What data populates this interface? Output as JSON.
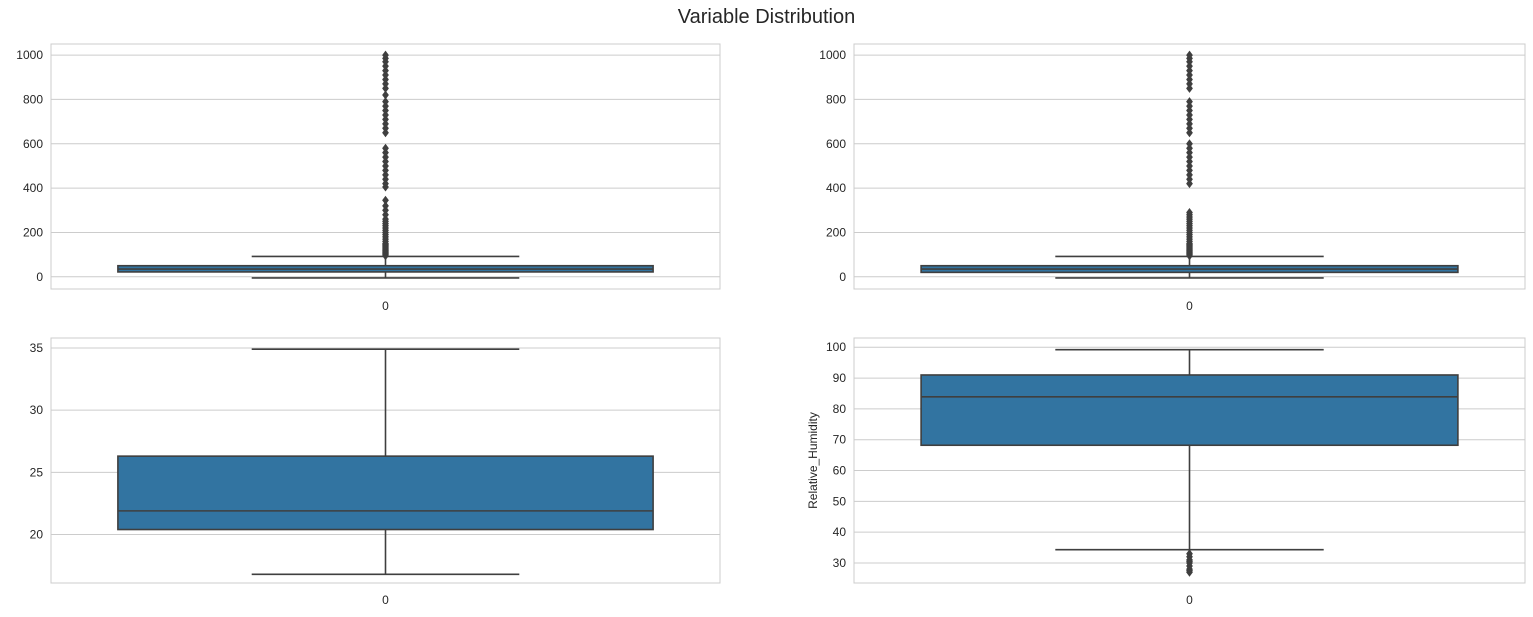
{
  "figure": {
    "title": "Variable Distribution"
  },
  "chart_data": [
    {
      "type": "box",
      "xlabel": "",
      "ylabel": "",
      "categories": [
        "0"
      ],
      "ylim": [
        -55,
        1050
      ],
      "yticks": [
        0,
        200,
        400,
        600,
        800,
        1000
      ],
      "grid": true,
      "color": "#3274a1",
      "box": {
        "whisker_low": -5,
        "q1": 22,
        "median": 35,
        "q3": 50,
        "whisker_high": 92
      },
      "outliers": [
        95,
        100,
        105,
        110,
        115,
        120,
        125,
        130,
        135,
        140,
        145,
        150,
        160,
        170,
        180,
        190,
        200,
        210,
        220,
        230,
        240,
        250,
        260,
        280,
        300,
        320,
        345,
        405,
        420,
        440,
        460,
        480,
        500,
        520,
        540,
        560,
        580,
        650,
        670,
        690,
        710,
        730,
        750,
        770,
        790,
        820,
        850,
        870,
        890,
        910,
        930,
        950,
        970,
        985,
        1000
      ]
    },
    {
      "type": "box",
      "xlabel": "",
      "ylabel": "",
      "categories": [
        "0"
      ],
      "ylim": [
        -55,
        1050
      ],
      "yticks": [
        0,
        200,
        400,
        600,
        800,
        1000
      ],
      "grid": true,
      "color": "#3274a1",
      "box": {
        "whisker_low": -5,
        "q1": 20,
        "median": 35,
        "q3": 50,
        "whisker_high": 92
      },
      "outliers": [
        95,
        100,
        105,
        110,
        115,
        120,
        125,
        130,
        135,
        140,
        145,
        150,
        160,
        170,
        180,
        190,
        200,
        210,
        220,
        230,
        240,
        250,
        260,
        270,
        280,
        290,
        420,
        440,
        460,
        480,
        500,
        520,
        540,
        560,
        580,
        600,
        650,
        670,
        690,
        710,
        730,
        750,
        770,
        790,
        850,
        870,
        890,
        910,
        930,
        950,
        970,
        985,
        1000
      ]
    },
    {
      "type": "box",
      "xlabel": "",
      "ylabel": "",
      "categories": [
        "0"
      ],
      "ylim": [
        16.1,
        35.8
      ],
      "yticks": [
        20,
        25,
        30,
        35
      ],
      "grid": true,
      "color": "#3274a1",
      "box": {
        "whisker_low": 16.8,
        "q1": 20.4,
        "median": 21.9,
        "q3": 26.3,
        "whisker_high": 34.9
      },
      "outliers": []
    },
    {
      "type": "box",
      "xlabel": "",
      "ylabel": "Relative_Humidity",
      "categories": [
        "0"
      ],
      "ylim": [
        23.5,
        103
      ],
      "yticks": [
        30,
        40,
        50,
        60,
        70,
        80,
        90,
        100
      ],
      "grid": true,
      "color": "#3274a1",
      "box": {
        "whisker_low": 34.3,
        "q1": 68.2,
        "median": 83.9,
        "q3": 91.0,
        "whisker_high": 99.2
      },
      "outliers": [
        27,
        27.5,
        28,
        29,
        30,
        30.5,
        31,
        32,
        33
      ]
    }
  ]
}
